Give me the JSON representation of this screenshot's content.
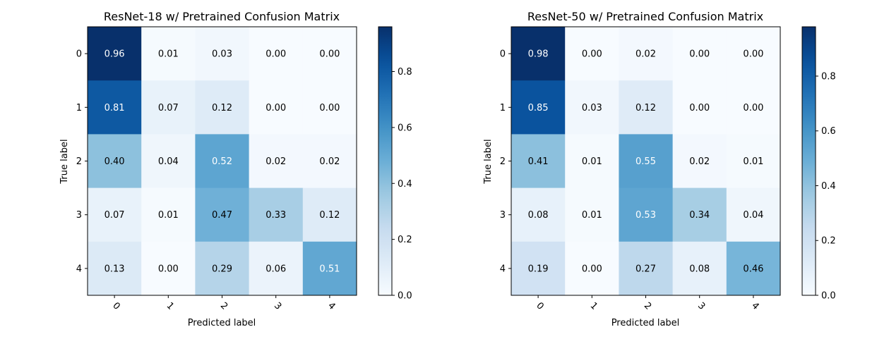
{
  "chart_data": [
    {
      "type": "heatmap",
      "title": "ResNet-18 w/ Pretrained Confusion Matrix",
      "xlabel": "Predicted label",
      "ylabel": "True label",
      "x_categories": [
        "0",
        "1",
        "2",
        "3",
        "4"
      ],
      "y_categories": [
        "0",
        "1",
        "2",
        "3",
        "4"
      ],
      "values": [
        [
          0.96,
          0.01,
          0.03,
          0.0,
          0.0
        ],
        [
          0.81,
          0.07,
          0.12,
          0.0,
          0.0
        ],
        [
          0.4,
          0.04,
          0.52,
          0.02,
          0.02
        ],
        [
          0.07,
          0.01,
          0.47,
          0.33,
          0.12
        ],
        [
          0.13,
          0.0,
          0.29,
          0.06,
          0.51
        ]
      ],
      "cell_labels": [
        [
          "0.96",
          "0.01",
          "0.03",
          "0.00",
          "0.00"
        ],
        [
          "0.81",
          "0.07",
          "0.12",
          "0.00",
          "0.00"
        ],
        [
          "0.40",
          "0.04",
          "0.52",
          "0.02",
          "0.02"
        ],
        [
          "0.07",
          "0.01",
          "0.47",
          "0.33",
          "0.12"
        ],
        [
          "0.13",
          "0.00",
          "0.29",
          "0.06",
          "0.51"
        ]
      ],
      "colorscale": "Blues",
      "colorbar_range": [
        0.0,
        0.96
      ],
      "colorbar_ticks": [
        0.0,
        0.2,
        0.4,
        0.6,
        0.8
      ],
      "colorbar_tick_labels": [
        "0.0",
        "0.2",
        "0.4",
        "0.6",
        "0.8"
      ],
      "x_tick_rotation": 45
    },
    {
      "type": "heatmap",
      "title": "ResNet-50 w/ Pretrained Confusion Matrix",
      "xlabel": "Predicted label",
      "ylabel": "True label",
      "x_categories": [
        "0",
        "1",
        "2",
        "3",
        "4"
      ],
      "y_categories": [
        "0",
        "1",
        "2",
        "3",
        "4"
      ],
      "values": [
        [
          0.98,
          0.0,
          0.02,
          0.0,
          0.0
        ],
        [
          0.85,
          0.03,
          0.12,
          0.0,
          0.0
        ],
        [
          0.41,
          0.01,
          0.55,
          0.02,
          0.01
        ],
        [
          0.08,
          0.01,
          0.53,
          0.34,
          0.04
        ],
        [
          0.19,
          0.0,
          0.27,
          0.08,
          0.46
        ]
      ],
      "cell_labels": [
        [
          "0.98",
          "0.00",
          "0.02",
          "0.00",
          "0.00"
        ],
        [
          "0.85",
          "0.03",
          "0.12",
          "0.00",
          "0.00"
        ],
        [
          "0.41",
          "0.01",
          "0.55",
          "0.02",
          "0.01"
        ],
        [
          "0.08",
          "0.01",
          "0.53",
          "0.34",
          "0.04"
        ],
        [
          "0.19",
          "0.00",
          "0.27",
          "0.08",
          "0.46"
        ]
      ],
      "colorscale": "Blues",
      "colorbar_range": [
        0.0,
        0.98
      ],
      "colorbar_ticks": [
        0.0,
        0.2,
        0.4,
        0.6,
        0.8
      ],
      "colorbar_tick_labels": [
        "0.0",
        "0.2",
        "0.4",
        "0.6",
        "0.8"
      ],
      "x_tick_rotation": 45
    }
  ]
}
